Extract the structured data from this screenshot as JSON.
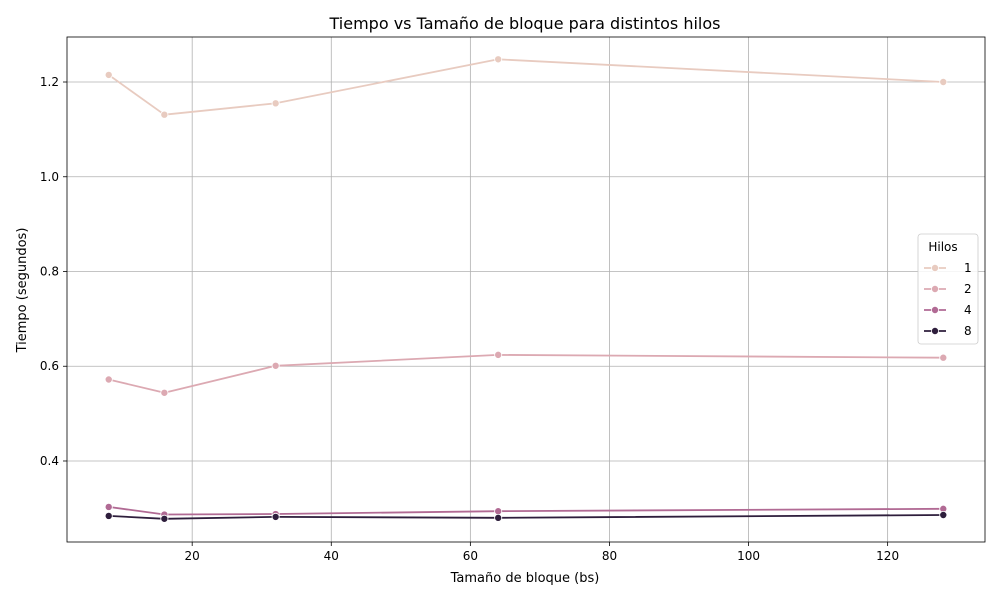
{
  "chart_data": {
    "type": "line",
    "title": "Tiempo vs Tamaño de bloque para distintos hilos",
    "xlabel": "Tamaño de bloque (bs)",
    "ylabel": "Tiempo (segundos)",
    "xlim": [
      2,
      134
    ],
    "ylim": [
      0.229,
      1.295
    ],
    "xticks": [
      20,
      40,
      60,
      80,
      100,
      120
    ],
    "yticks": [
      0.4,
      0.6,
      0.8,
      1.0,
      1.2
    ],
    "xtick_labels": [
      "20",
      "40",
      "60",
      "80",
      "100",
      "120"
    ],
    "ytick_labels": [
      "0.4",
      "0.6",
      "0.8",
      "1.0",
      "1.2"
    ],
    "grid": true,
    "legend": {
      "title": "Hilos",
      "placement": "center-right"
    },
    "x": [
      8,
      16,
      32,
      64,
      128
    ],
    "series": [
      {
        "name": "1",
        "color": "#e8cbc0",
        "values": [
          1.215,
          1.131,
          1.155,
          1.248,
          1.2
        ]
      },
      {
        "name": "2",
        "color": "#dca9b2",
        "values": [
          0.572,
          0.544,
          0.601,
          0.624,
          0.618
        ]
      },
      {
        "name": "4",
        "color": "#b16a94",
        "values": [
          0.303,
          0.287,
          0.288,
          0.294,
          0.299
        ]
      },
      {
        "name": "8",
        "color": "#2e1e3c",
        "values": [
          0.284,
          0.278,
          0.282,
          0.28,
          0.286
        ]
      }
    ]
  }
}
